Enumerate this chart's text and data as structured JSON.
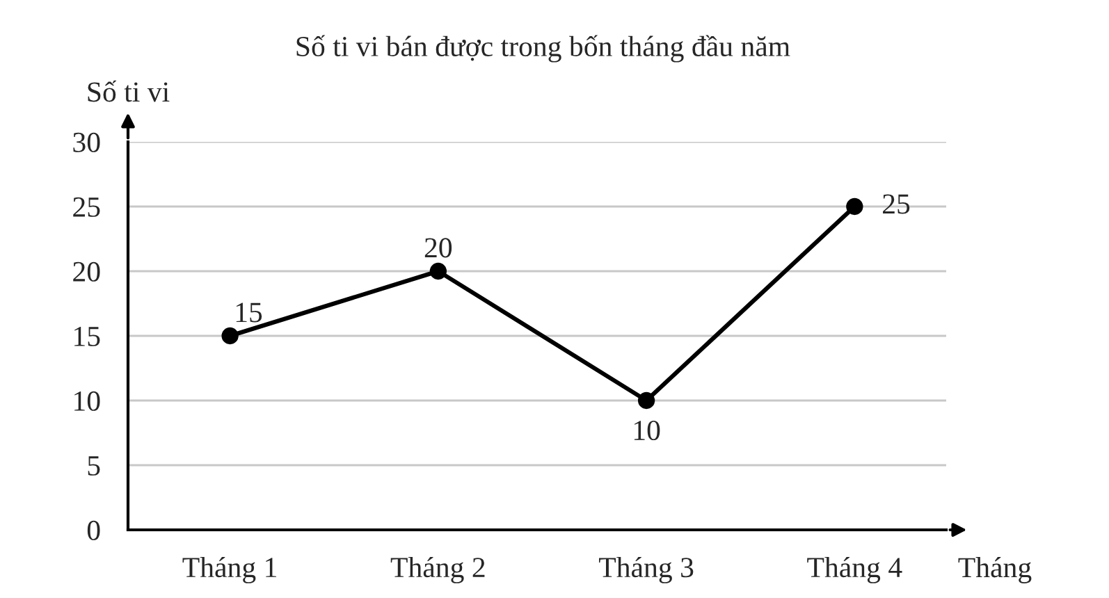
{
  "chart_data": {
    "type": "line",
    "title": "Số ti vi bán được trong bốn tháng đầu năm",
    "xlabel": "Tháng",
    "ylabel": "Số ti vi",
    "categories": [
      "Tháng 1",
      "Tháng 2",
      "Tháng 3",
      "Tháng 4"
    ],
    "series": [
      {
        "color": "#000000",
        "values": [
          15,
          20,
          10,
          25
        ]
      }
    ],
    "ylim": [
      0,
      30
    ],
    "yticks": [
      0,
      5,
      10,
      15,
      20,
      25,
      30
    ],
    "grid": "y",
    "marker": "circle",
    "line_style": "solid",
    "data_labels": true
  }
}
